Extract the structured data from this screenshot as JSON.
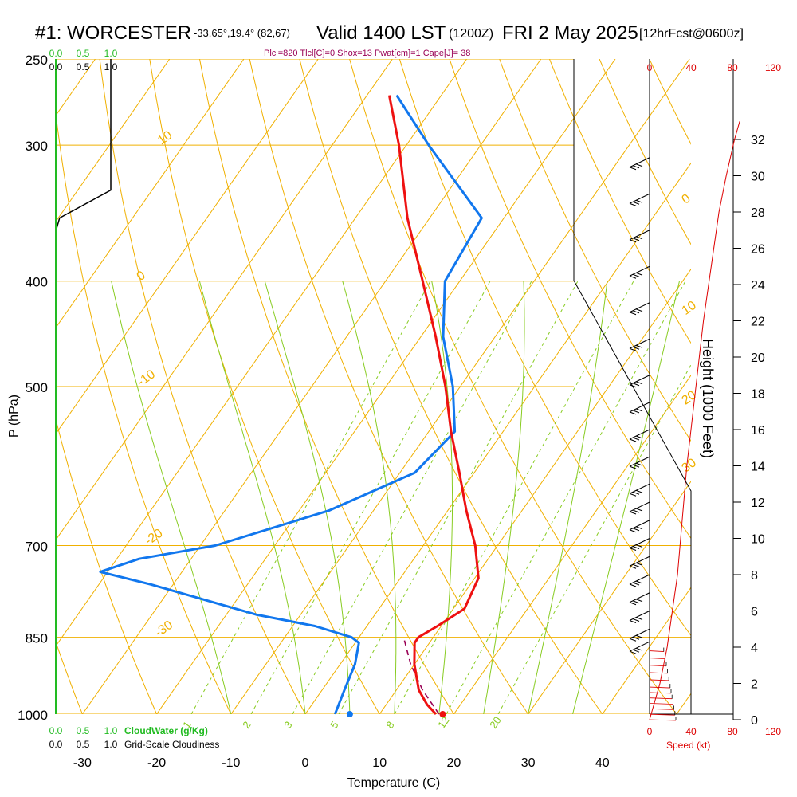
{
  "header": {
    "station": "#1: WORCESTER",
    "coords": "-33.65°,19.4° (82,67)",
    "valid": "Valid 1400 LST",
    "zulu": "(1200Z)",
    "date": "FRI 2 May 2025",
    "fcst": "[12hrFcst@0600z]",
    "indices": "Plcl=820 Tlcl[C]=0 Shox=13 Pwat[cm]=1 Cape[J]= 38"
  },
  "colors": {
    "temperature": "#ee1111",
    "dewpoint": "#1177ee",
    "isotherm_isobar": "#f0b000",
    "dry_adiabat": "#f0b000",
    "moist_adiabat": "#88cc22",
    "mixing_ratio": "#88cc22",
    "parcel": "#990055",
    "cloud_water": "#22bb22",
    "speed": "#dd0000",
    "indices_text": "#990055"
  },
  "chart_data": {
    "type": "line",
    "title": "#1: WORCESTER",
    "xlabel": "Temperature (C)",
    "ylabel": "P (hPa)",
    "right_ylabel": "Height (1000 Feet)",
    "pressure_ticks": [
      250,
      300,
      400,
      500,
      700,
      850,
      1000
    ],
    "temperature_ticks": [
      -30,
      -20,
      -10,
      0,
      10,
      20,
      30,
      40
    ],
    "height_ticks": [
      0,
      2,
      4,
      6,
      8,
      10,
      12,
      14,
      16,
      18,
      20,
      22,
      24,
      26,
      28,
      30,
      32
    ],
    "speed_ticks": [
      "0",
      "40",
      "80",
      "120"
    ],
    "speed_label": "Speed (kt)",
    "cloud_water_ticks": [
      "0.0",
      "0.5",
      "1.0"
    ],
    "cloud_water_label": "CloudWater (g/Kg)",
    "cloudiness_ticks": [
      "0.0",
      "0.5",
      "1.0"
    ],
    "cloudiness_label": "Grid-Scale Cloudiness",
    "isotherm_labels": [
      {
        "p": 1000,
        "t": 1.5,
        "text": "1"
      },
      {
        "p": 1000,
        "t": 9.5,
        "text": "2"
      },
      {
        "p": 1000,
        "t": 15,
        "text": "3"
      },
      {
        "p": 1000,
        "t": 21,
        "text": "5"
      },
      {
        "p": 1000,
        "t": 30,
        "text": "8"
      },
      {
        "p": 1000,
        "t": 36.5,
        "text": "12"
      },
      {
        "p": 1000,
        "t": 44,
        "text": "20"
      }
    ],
    "dry_adiabat_labels": [
      {
        "p": 300,
        "t": -73,
        "text": "10"
      },
      {
        "p": 400,
        "t": -63,
        "text": "0"
      },
      {
        "p": 500,
        "t": -53,
        "text": "-10"
      },
      {
        "p": 700,
        "t": -37,
        "text": "-20"
      },
      {
        "p": 850,
        "t": -27,
        "text": "-30"
      },
      {
        "p": 340,
        "t": 15,
        "text": "0"
      },
      {
        "p": 430,
        "t": 30,
        "text": "10"
      },
      {
        "p": 520,
        "t": 44,
        "text": "20"
      },
      {
        "p": 600,
        "t": 61,
        "text": "30"
      }
    ],
    "series": [
      {
        "name": "Temperature",
        "points": [
          {
            "p": 1000,
            "t": 17.6
          },
          {
            "p": 980,
            "t": 15.5
          },
          {
            "p": 950,
            "t": 13.0
          },
          {
            "p": 900,
            "t": 10.0
          },
          {
            "p": 860,
            "t": 8.0
          },
          {
            "p": 850,
            "t": 8.0
          },
          {
            "p": 830,
            "t": 9.5
          },
          {
            "p": 800,
            "t": 11.5
          },
          {
            "p": 750,
            "t": 10.5
          },
          {
            "p": 700,
            "t": 7.0
          },
          {
            "p": 650,
            "t": 2.5
          },
          {
            "p": 600,
            "t": -2.0
          },
          {
            "p": 550,
            "t": -7.0
          },
          {
            "p": 500,
            "t": -12.0
          },
          {
            "p": 450,
            "t": -18.0
          },
          {
            "p": 400,
            "t": -25.0
          },
          {
            "p": 350,
            "t": -33.0
          },
          {
            "p": 300,
            "t": -41.0
          },
          {
            "p": 270,
            "t": -47.0
          }
        ]
      },
      {
        "name": "Dewpoint",
        "points": [
          {
            "p": 1000,
            "t": 4.0
          },
          {
            "p": 950,
            "t": 3.0
          },
          {
            "p": 900,
            "t": 2.0
          },
          {
            "p": 860,
            "t": 0.5
          },
          {
            "p": 850,
            "t": -1.0
          },
          {
            "p": 830,
            "t": -7.0
          },
          {
            "p": 810,
            "t": -16.0
          },
          {
            "p": 760,
            "t": -33.0
          },
          {
            "p": 740,
            "t": -41.0
          },
          {
            "p": 720,
            "t": -37.0
          },
          {
            "p": 700,
            "t": -28.0
          },
          {
            "p": 650,
            "t": -16.0
          },
          {
            "p": 600,
            "t": -8.0
          },
          {
            "p": 550,
            "t": -6.5
          },
          {
            "p": 500,
            "t": -11.0
          },
          {
            "p": 450,
            "t": -17.0
          },
          {
            "p": 400,
            "t": -22.0
          },
          {
            "p": 350,
            "t": -23.0
          },
          {
            "p": 300,
            "t": -37.0
          },
          {
            "p": 270,
            "t": -46.0
          }
        ]
      },
      {
        "name": "Parcel",
        "points": [
          {
            "p": 1000,
            "t": 18.0
          },
          {
            "p": 950,
            "t": 13.5
          },
          {
            "p": 900,
            "t": 9.5
          },
          {
            "p": 850,
            "t": 6.0
          }
        ]
      }
    ],
    "surface_temperature": 18.5,
    "surface_dewpoint": 6.0,
    "speed_profile": [
      {
        "h": 0,
        "kt": 0
      },
      {
        "h": 2,
        "kt": 10
      },
      {
        "h": 4,
        "kt": 17
      },
      {
        "h": 6,
        "kt": 22
      },
      {
        "h": 8,
        "kt": 27
      },
      {
        "h": 10,
        "kt": 30
      },
      {
        "h": 12,
        "kt": 33
      },
      {
        "h": 14,
        "kt": 36
      },
      {
        "h": 16,
        "kt": 40
      },
      {
        "h": 18,
        "kt": 44
      },
      {
        "h": 20,
        "kt": 48
      },
      {
        "h": 22,
        "kt": 52
      },
      {
        "h": 24,
        "kt": 57
      },
      {
        "h": 26,
        "kt": 62
      },
      {
        "h": 28,
        "kt": 67
      },
      {
        "h": 30,
        "kt": 74
      },
      {
        "h": 32,
        "kt": 82
      },
      {
        "h": 33,
        "kt": 87
      }
    ],
    "wind_barb_heights": [
      0,
      0.3,
      0.6,
      0.9,
      1.2,
      1.5,
      1.8,
      2.2,
      2.6,
      3.0,
      3.4,
      3.8,
      4.3,
      5,
      6,
      7,
      8,
      9,
      10,
      11,
      12,
      13,
      14.5,
      16,
      17.5,
      19,
      21,
      23,
      25,
      27,
      29,
      31
    ],
    "cloudiness_profile": [
      {
        "p": 250,
        "c": 1.0
      },
      {
        "p": 330,
        "c": 1.0
      },
      {
        "p": 350,
        "c": 0.07
      },
      {
        "p": 360,
        "c": 0.0
      }
    ]
  }
}
